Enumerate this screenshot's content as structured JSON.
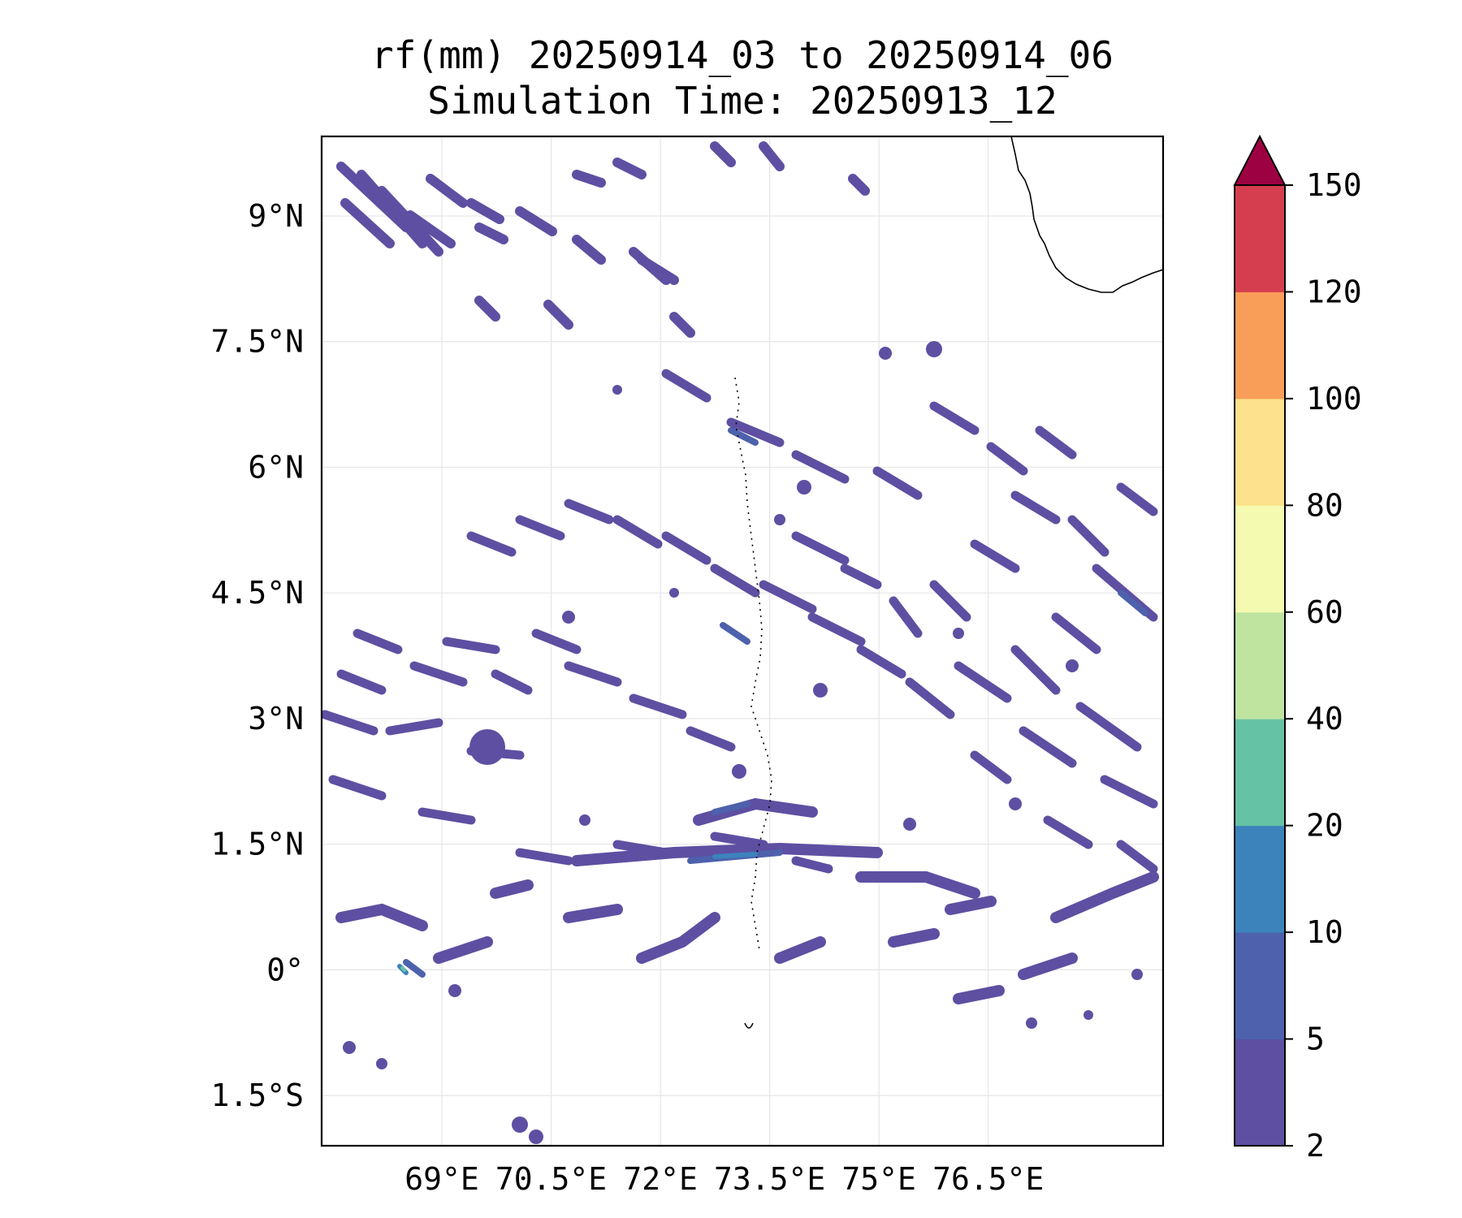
{
  "title": {
    "line1": "rf(mm) 20250914_03 to 20250914_06",
    "line2": "Simulation Time: 20250913_12"
  },
  "map": {
    "lon_range": [
      67.35,
      78.9
    ],
    "lat_range": [
      -2.1,
      9.95
    ],
    "lon_ticks": [
      {
        "value": 69.0,
        "label": "69°E"
      },
      {
        "value": 70.5,
        "label": "70.5°E"
      },
      {
        "value": 72.0,
        "label": "72°E"
      },
      {
        "value": 73.5,
        "label": "73.5°E"
      },
      {
        "value": 75.0,
        "label": "75°E"
      },
      {
        "value": 76.5,
        "label": "76.5°E"
      }
    ],
    "lat_ticks": [
      {
        "value": 9.0,
        "label": "9°N"
      },
      {
        "value": 7.5,
        "label": "7.5°N"
      },
      {
        "value": 6.0,
        "label": "6°N"
      },
      {
        "value": 4.5,
        "label": "4.5°N"
      },
      {
        "value": 3.0,
        "label": "3°N"
      },
      {
        "value": 1.5,
        "label": "1.5°N"
      },
      {
        "value": 0.0,
        "label": "0°"
      },
      {
        "value": -1.5,
        "label": "1.5°S"
      }
    ],
    "gridlines": true,
    "coastline": "southern tip of India (top-right) and Maldives atolls (center)"
  },
  "colorbar": {
    "levels": [
      {
        "label": "2",
        "color": "#5e4fa2"
      },
      {
        "label": "5",
        "color": "#4d61ad"
      },
      {
        "label": "10",
        "color": "#3c83bc"
      },
      {
        "label": "20",
        "color": "#66c2a5"
      },
      {
        "label": "40",
        "color": "#bfe4a0"
      },
      {
        "label": "60",
        "color": "#f4faaf"
      },
      {
        "label": "80",
        "color": "#fde18c"
      },
      {
        "label": "100",
        "color": "#f99e58"
      },
      {
        "label": "120",
        "color": "#d53e4f"
      },
      {
        "label": "150",
        "color": "#9e0142"
      }
    ],
    "extend": "max"
  }
}
